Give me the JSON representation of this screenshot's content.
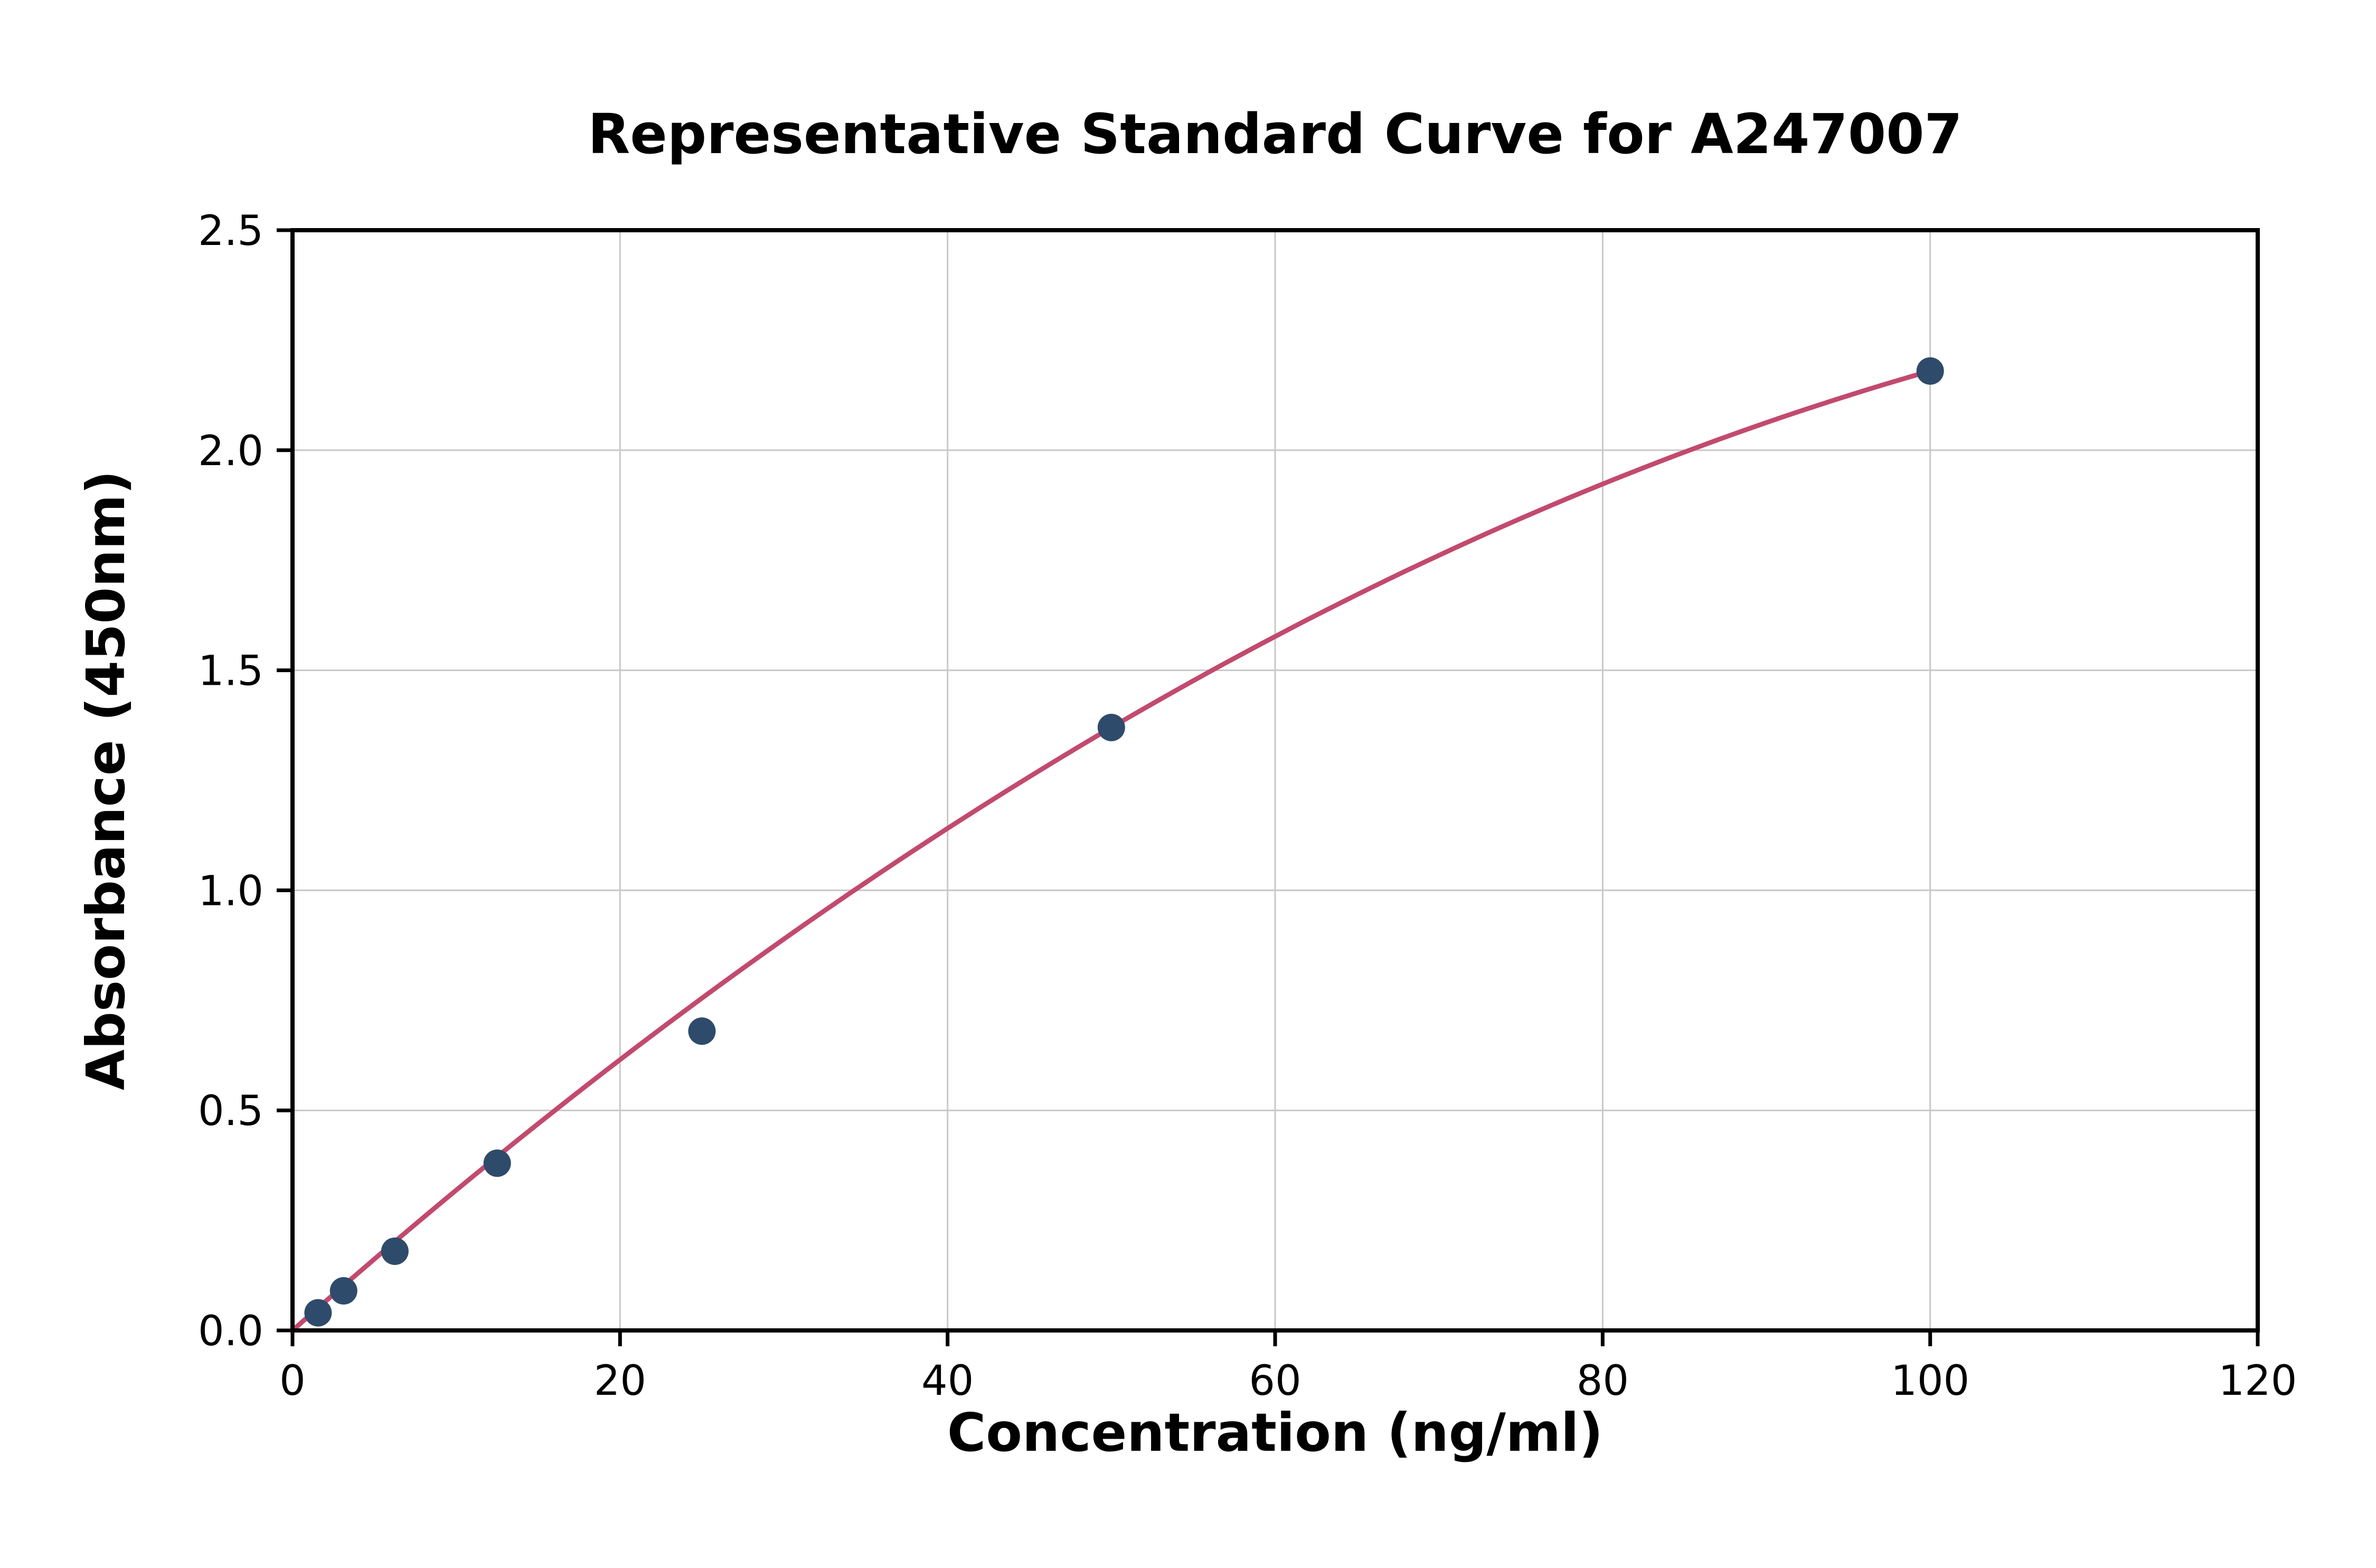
{
  "chart_data": {
    "type": "scatter",
    "title": "Representative Standard Curve for A247007",
    "xlabel": "Concentration (ng/ml)",
    "ylabel": "Absorbance (450nm)",
    "xlim": [
      0,
      120
    ],
    "ylim": [
      0,
      2.5
    ],
    "xticks": [
      0,
      20,
      40,
      60,
      80,
      100,
      120
    ],
    "xtick_labels": [
      "0",
      "20",
      "40",
      "60",
      "80",
      "100",
      "120"
    ],
    "yticks": [
      0,
      0.5,
      1.0,
      1.5,
      2.0,
      2.5
    ],
    "ytick_labels": [
      "0.0",
      "0.5",
      "1.0",
      "1.5",
      "2.0",
      "2.5"
    ],
    "grid": true,
    "legend": "none",
    "points": [
      {
        "x": 1.56,
        "y": 0.04
      },
      {
        "x": 3.12,
        "y": 0.09
      },
      {
        "x": 6.25,
        "y": 0.18
      },
      {
        "x": 12.5,
        "y": 0.38
      },
      {
        "x": 25,
        "y": 0.68
      },
      {
        "x": 50,
        "y": 1.37
      },
      {
        "x": 100,
        "y": 2.18
      }
    ],
    "fit_curve": {
      "type": "quadratic",
      "c1": 0.033,
      "c2": -0.000112,
      "x_range": [
        0,
        100
      ]
    },
    "colors": {
      "points": "#2e4b6b",
      "curve": "#c24a6e",
      "grid": "#c8c8c8",
      "axis": "#000000",
      "background": "#ffffff"
    }
  }
}
